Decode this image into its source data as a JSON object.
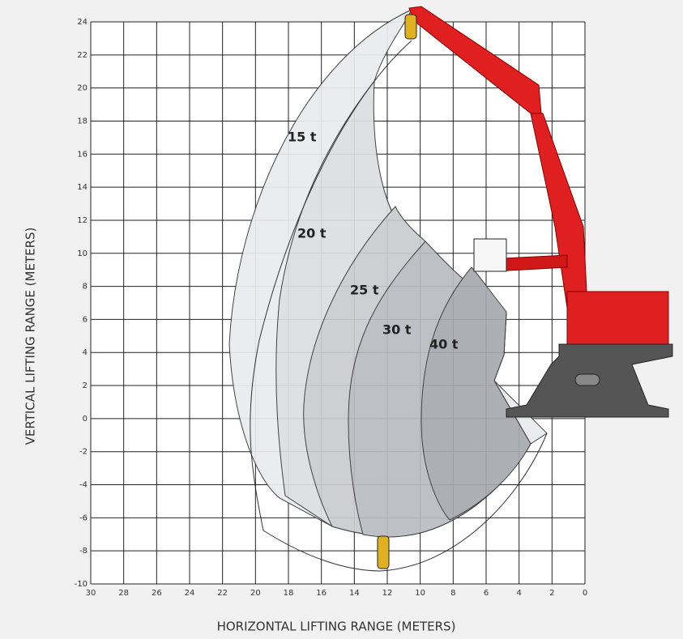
{
  "chart_data": {
    "type": "range",
    "x_label": "HORIZONTAL LIFTING RANGE (METERS)",
    "y_label": "VERTICAL LIFTING RANGE (METERS)",
    "xlim": [
      30,
      0
    ],
    "xticks": [
      30,
      28,
      26,
      24,
      22,
      20,
      18,
      16,
      14,
      12,
      10,
      8,
      6,
      4,
      2,
      0
    ],
    "ylim": [
      -10,
      24
    ],
    "yticks": [
      -10,
      -8,
      -6,
      -4,
      -2,
      0,
      2,
      4,
      6,
      8,
      10,
      12,
      14,
      16,
      18,
      20,
      22,
      24
    ],
    "grid": true,
    "zones": [
      "15 t",
      "20 t",
      "25 t",
      "30 t",
      "40 t"
    ]
  }
}
